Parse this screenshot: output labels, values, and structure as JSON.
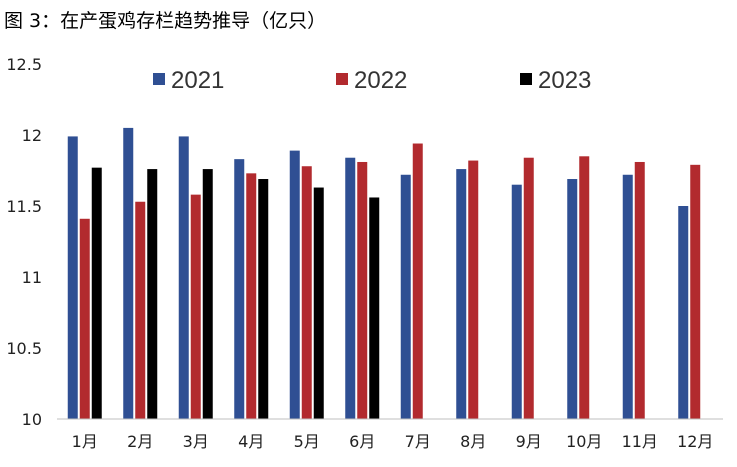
{
  "chart_data": {
    "type": "bar",
    "title": "图 3：在产蛋鸡存栏趋势推导（亿只）",
    "xlabel": "",
    "ylabel": "",
    "ylim": [
      10,
      12.5
    ],
    "yticks": [
      "10",
      "10.5",
      "11",
      "11.5",
      "12",
      "12.5"
    ],
    "categories": [
      "1月",
      "2月",
      "3月",
      "4月",
      "5月",
      "6月",
      "7月",
      "8月",
      "9月",
      "10月",
      "11月",
      "12月"
    ],
    "series": [
      {
        "name": "2021",
        "color": "#2F4F93",
        "values": [
          11.99,
          12.05,
          11.99,
          11.83,
          11.89,
          11.84,
          11.72,
          11.76,
          11.65,
          11.69,
          11.72,
          11.5
        ]
      },
      {
        "name": "2022",
        "color": "#B22A2E",
        "values": [
          11.41,
          11.53,
          11.58,
          11.73,
          11.78,
          11.81,
          11.94,
          11.82,
          11.84,
          11.85,
          11.81,
          11.79
        ]
      },
      {
        "name": "2023",
        "color": "#000000",
        "values": [
          11.77,
          11.76,
          11.76,
          11.69,
          11.63,
          11.56,
          null,
          null,
          null,
          null,
          null,
          null
        ]
      }
    ],
    "legend_position": "top",
    "grid": false
  }
}
